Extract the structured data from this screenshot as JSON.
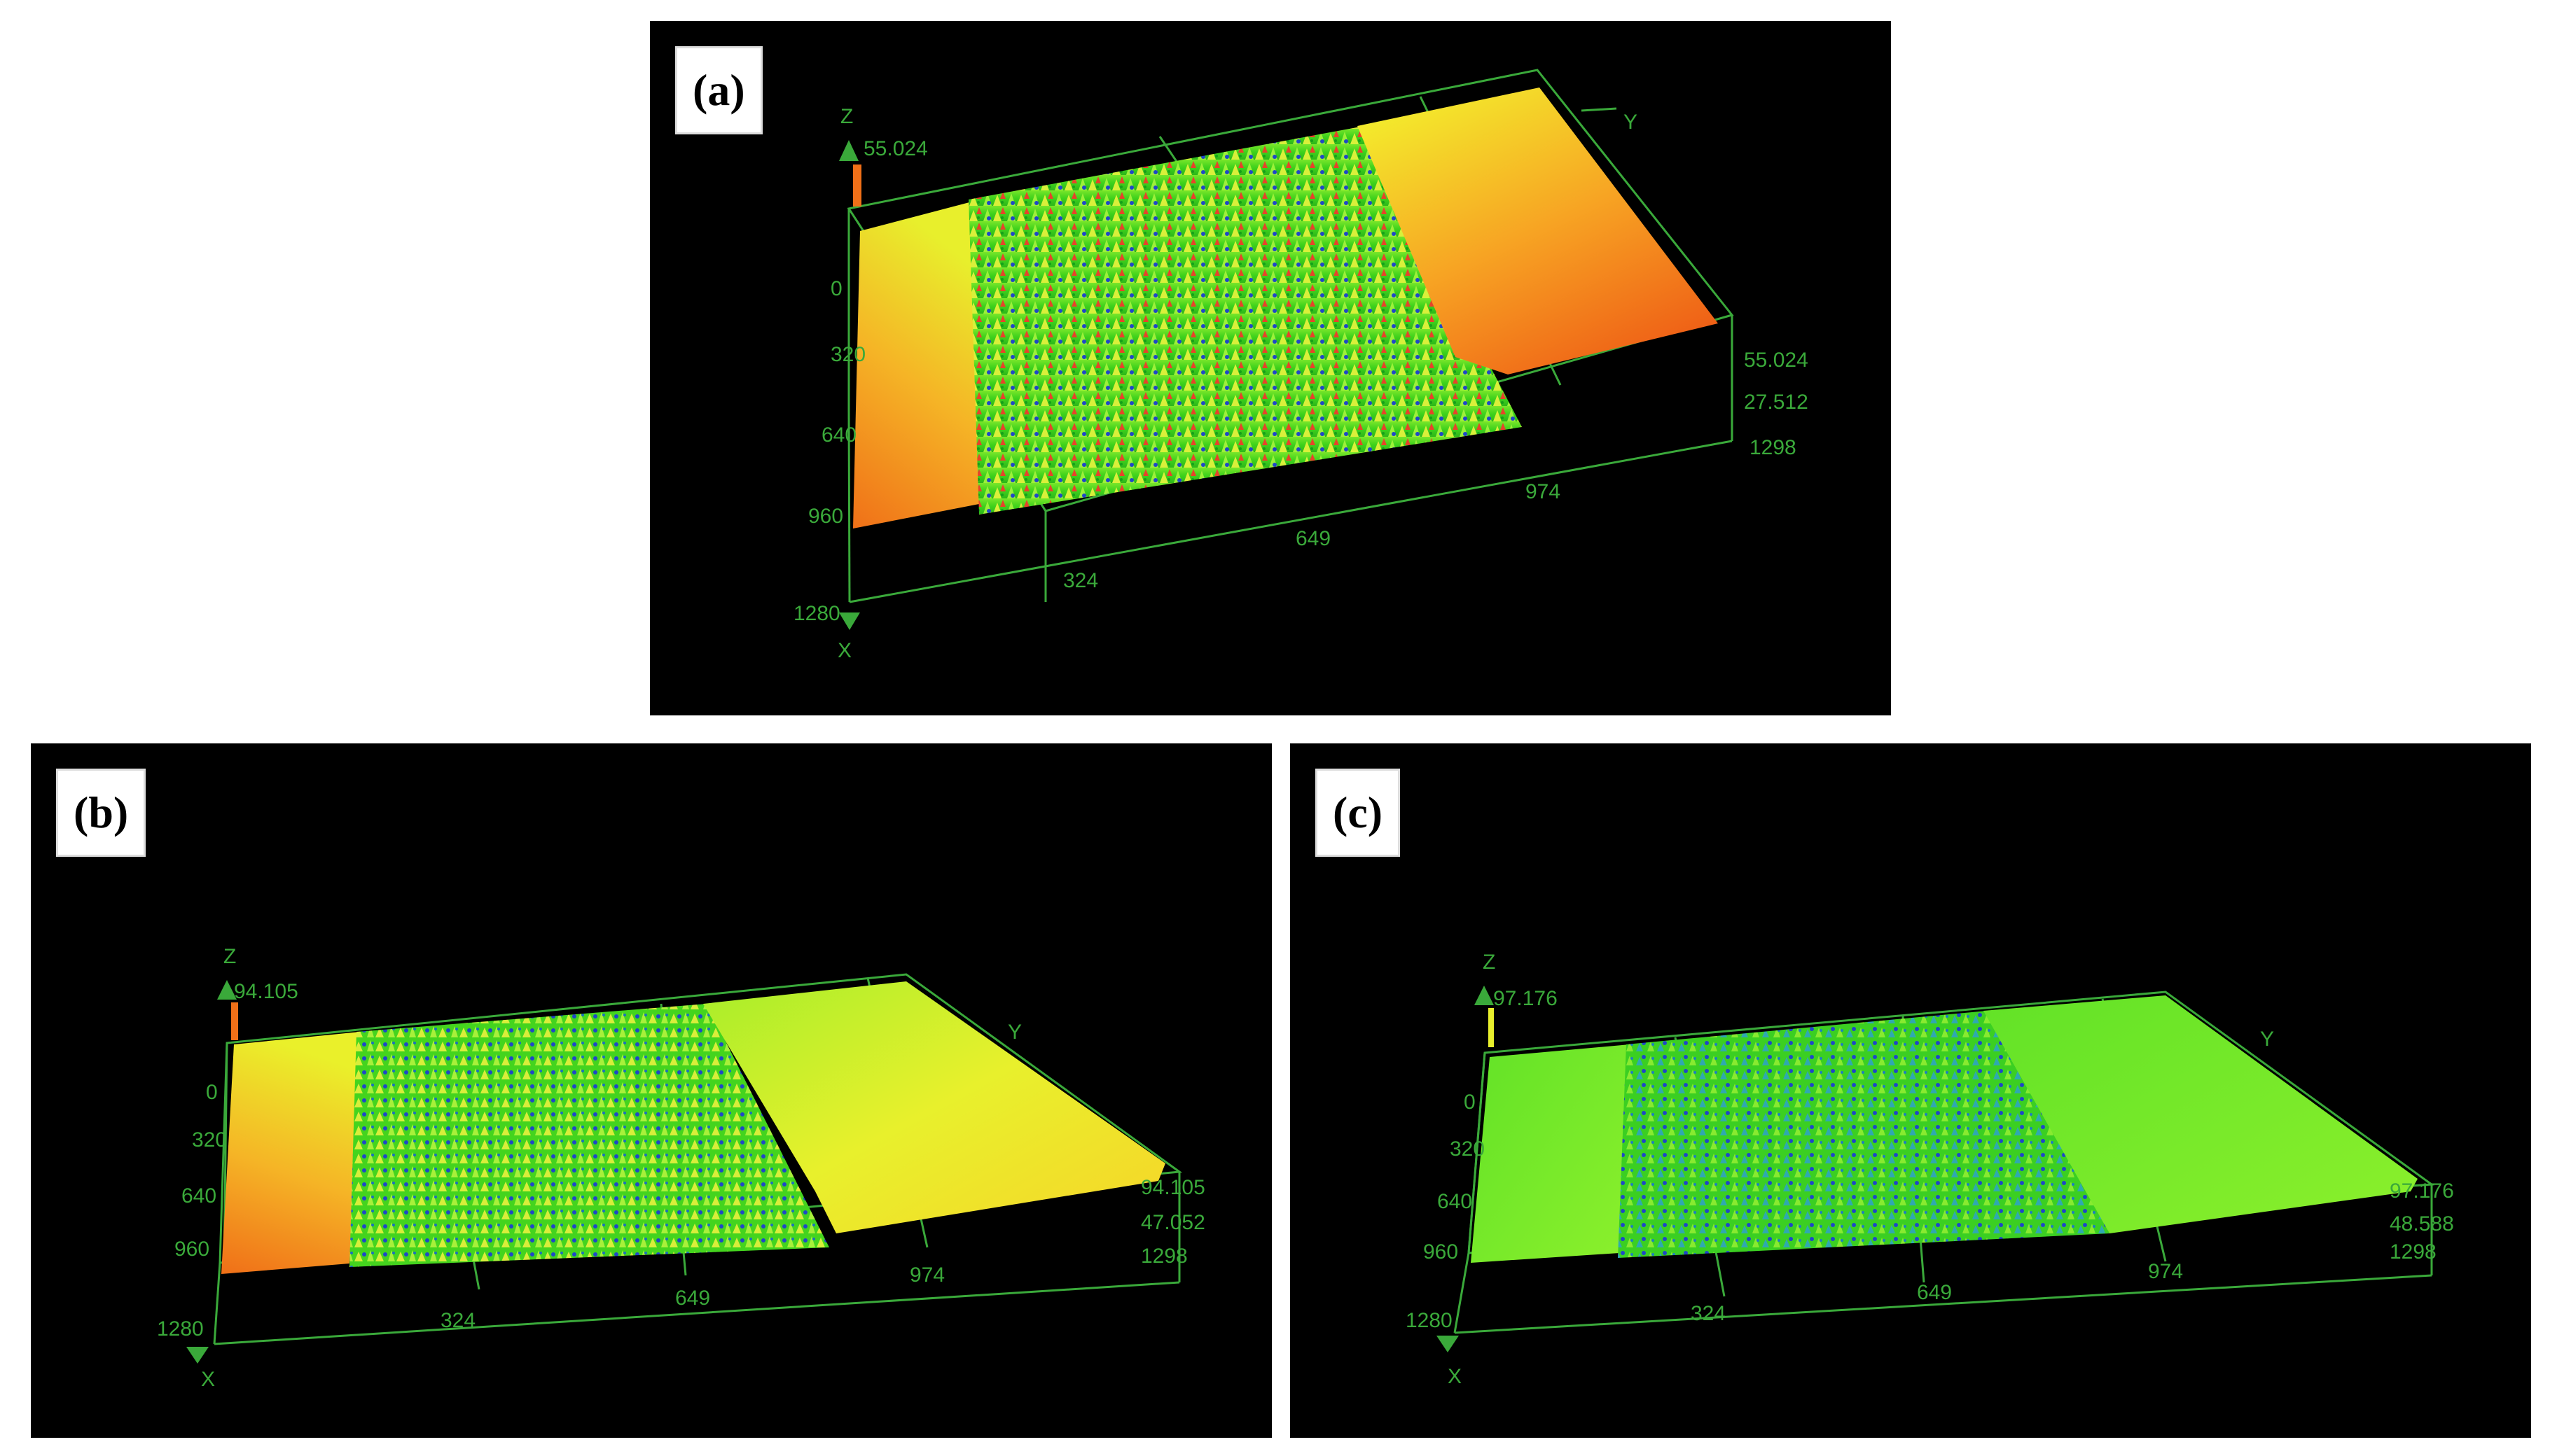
{
  "panels": {
    "a": {
      "tag": "(a)",
      "axis": {
        "z": "Z",
        "y": "Y",
        "x": "X"
      },
      "z_max": "55.024",
      "z_ticks": [
        "55.024",
        "27.512"
      ],
      "row_ticks": [
        "0",
        "320",
        "640",
        "960",
        "1280"
      ],
      "col_ticks": [
        "324",
        "649",
        "974",
        "1298"
      ]
    },
    "b": {
      "tag": "(b)",
      "axis": {
        "z": "Z",
        "y": "Y",
        "x": "X"
      },
      "z_max": "94.105",
      "z_ticks": [
        "94.105",
        "47.052"
      ],
      "row_ticks": [
        "0",
        "320",
        "640",
        "960",
        "1280"
      ],
      "col_ticks": [
        "324",
        "649",
        "974",
        "1298"
      ]
    },
    "c": {
      "tag": "(c)",
      "axis": {
        "z": "Z",
        "y": "Y",
        "x": "X"
      },
      "z_max": "97.176",
      "z_ticks": [
        "97.176",
        "48.588"
      ],
      "row_ticks": [
        "0",
        "320",
        "640",
        "960",
        "1280"
      ],
      "col_ticks": [
        "324",
        "649",
        "974",
        "1298"
      ]
    }
  },
  "colors": {
    "background": "#000000",
    "axis": "#3aa93a",
    "flat_orange": "#f07a1c",
    "flat_yellow": "#f2e92a",
    "rough_green": "#49dd21",
    "rough_blue": "#1f47c8"
  }
}
